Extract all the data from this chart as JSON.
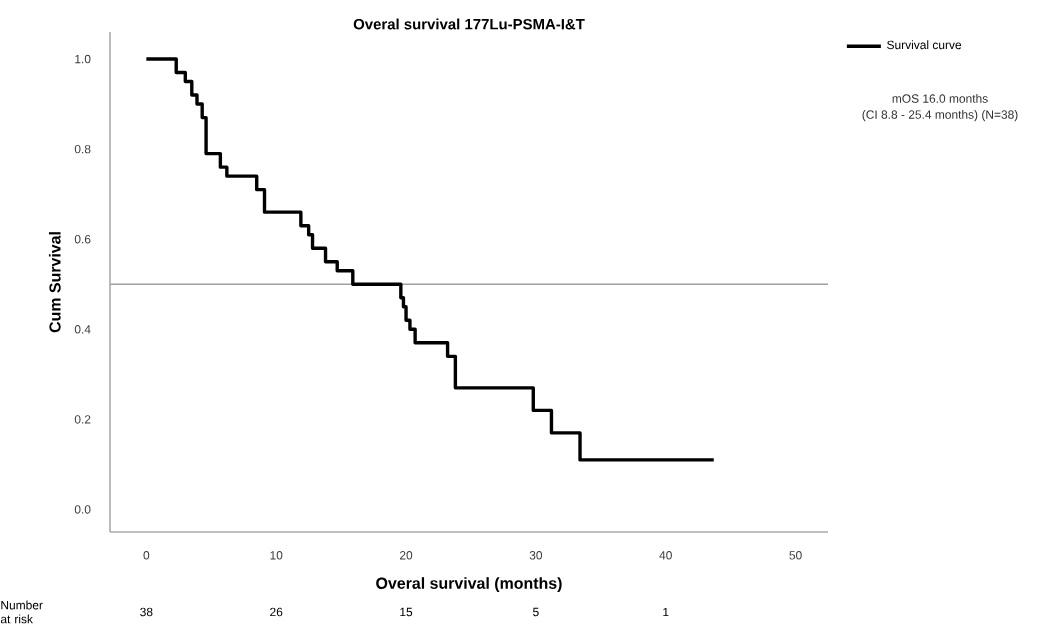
{
  "chart_data": {
    "type": "step",
    "title": "Overal survival 177Lu-PSMA-I&T",
    "xlabel": "Overal survival (months)",
    "ylabel": "Cum Survival",
    "annotations": [
      "mOS 16.0 months",
      "(CI 8.8 - 25.4 months) (N=38)",
      "Number at risk",
      "38",
      "26",
      "15",
      "5",
      "1"
    ],
    "series": [
      {
        "name": "Survival curve",
        "color": "#000000",
        "x": [
          0,
          2.3,
          3.0,
          3.5,
          3.9,
          4.3,
          4.6,
          5.7,
          6.2,
          8.5,
          9.1,
          11.9,
          12.5,
          12.8,
          13.8,
          14.7,
          15.9,
          19.6,
          19.8,
          20.0,
          20.3,
          20.7,
          23.2,
          23.8,
          29.8,
          31.2,
          33.4,
          43.7
        ],
        "values": [
          1.0,
          0.97,
          0.95,
          0.92,
          0.9,
          0.87,
          0.79,
          0.76,
          0.74,
          0.71,
          0.66,
          0.63,
          0.61,
          0.58,
          0.55,
          0.53,
          0.5,
          0.47,
          0.45,
          0.42,
          0.4,
          0.37,
          0.34,
          0.27,
          0.22,
          0.17,
          0.11,
          0.11
        ]
      }
    ],
    "xlim": [
      -2.8,
      52.5
    ],
    "ylim": [
      -0.05,
      1.06
    ],
    "xticks": [
      0,
      10,
      20,
      30,
      40,
      50
    ],
    "yticks": [
      {
        "value": 0,
        "label": "0.0"
      },
      {
        "value": 0.2,
        "label": "0.2"
      },
      {
        "value": 0.4,
        "label": "0.4"
      },
      {
        "value": 0.6,
        "label": "0.6"
      },
      {
        "value": 0.8,
        "label": "0.8"
      },
      {
        "value": 1.0,
        "label": "1.0"
      }
    ],
    "ref_lines": [
      {
        "axis": "y",
        "value": 0.5,
        "color": "#a0a0a0"
      }
    ],
    "legend": "top right",
    "grid": false,
    "marker": "none",
    "line_style": "solid"
  }
}
